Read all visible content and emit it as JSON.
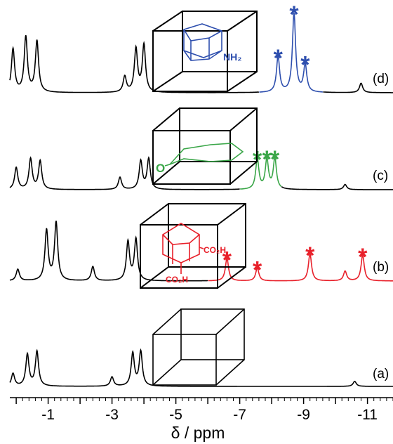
{
  "chart_data": {
    "type": "line",
    "xlabel": "δ / ppm",
    "x_reversed": true,
    "xlim": [
      0.2,
      -11.8
    ],
    "x_ticks": [
      -1,
      -3,
      -5,
      -7,
      -9,
      -11
    ],
    "x_tick_labels": [
      "-1",
      "-3",
      "-5",
      "-7",
      "-9",
      "-11"
    ],
    "grid": false,
    "colors": {
      "base": "#000000",
      "d": "#2e4fae",
      "c": "#3aa648",
      "b": "#e8202a"
    },
    "series": [
      {
        "name": "(d)",
        "highlight_color": "#2e4fae",
        "highlight_range": [
          -7.6,
          -9.6
        ],
        "starred_peaks": [
          -8.2,
          -8.7,
          -9.05
        ],
        "peaks": [
          {
            "shift": 0.1,
            "height": 0.55
          },
          {
            "shift": -0.3,
            "height": 0.7
          },
          {
            "shift": -0.65,
            "height": 0.65
          },
          {
            "shift": -3.4,
            "height": 0.2
          },
          {
            "shift": -3.75,
            "height": 0.55
          },
          {
            "shift": -4.0,
            "height": 0.6
          },
          {
            "shift": -8.2,
            "height": 0.45
          },
          {
            "shift": -8.7,
            "height": 1.0
          },
          {
            "shift": -9.05,
            "height": 0.35
          },
          {
            "shift": -10.8,
            "height": 0.12
          }
        ]
      },
      {
        "name": "(c)",
        "highlight_color": "#3aa648",
        "highlight_range": [
          -7.0,
          -8.3
        ],
        "starred_peaks": [
          -7.55,
          -7.85,
          -8.1
        ],
        "peaks": [
          {
            "shift": 0.0,
            "height": 0.5
          },
          {
            "shift": -0.45,
            "height": 0.7
          },
          {
            "shift": -0.75,
            "height": 0.65
          },
          {
            "shift": -3.25,
            "height": 0.28
          },
          {
            "shift": -3.9,
            "height": 0.65
          },
          {
            "shift": -4.15,
            "height": 0.7
          },
          {
            "shift": -7.55,
            "height": 0.7
          },
          {
            "shift": -7.85,
            "height": 0.68
          },
          {
            "shift": -8.1,
            "height": 0.7
          },
          {
            "shift": -10.3,
            "height": 0.12
          }
        ]
      },
      {
        "name": "(b)",
        "highlight_color": "#e8202a",
        "highlight_range": [
          -6.0,
          -11.8
        ],
        "starred_peaks": [
          -6.6,
          -7.55,
          -9.2,
          -10.85
        ],
        "peaks": [
          {
            "shift": -0.05,
            "height": 0.18
          },
          {
            "shift": -0.95,
            "height": 0.78
          },
          {
            "shift": -1.25,
            "height": 0.9
          },
          {
            "shift": -2.4,
            "height": 0.22
          },
          {
            "shift": -3.5,
            "height": 0.6
          },
          {
            "shift": -3.75,
            "height": 0.64
          },
          {
            "shift": -6.6,
            "height": 0.35
          },
          {
            "shift": -7.55,
            "height": 0.2
          },
          {
            "shift": -9.2,
            "height": 0.42
          },
          {
            "shift": -10.3,
            "height": 0.15
          },
          {
            "shift": -10.85,
            "height": 0.4
          }
        ]
      },
      {
        "name": "(a)",
        "highlight_color": "#000000",
        "highlight_range": [],
        "starred_peaks": [],
        "peaks": [
          {
            "shift": 0.1,
            "height": 0.3
          },
          {
            "shift": -0.35,
            "height": 0.75
          },
          {
            "shift": -0.65,
            "height": 0.82
          },
          {
            "shift": -3.0,
            "height": 0.22
          },
          {
            "shift": -3.65,
            "height": 0.78
          },
          {
            "shift": -3.9,
            "height": 0.82
          },
          {
            "shift": -10.6,
            "height": 0.12
          }
        ]
      }
    ],
    "annotations": {
      "amine_label": "NH₂",
      "carboxyl_label_top": "CO₂H",
      "carboxyl_label_bottom": "CO₂H",
      "ketone_label": "O",
      "star": "*"
    }
  }
}
